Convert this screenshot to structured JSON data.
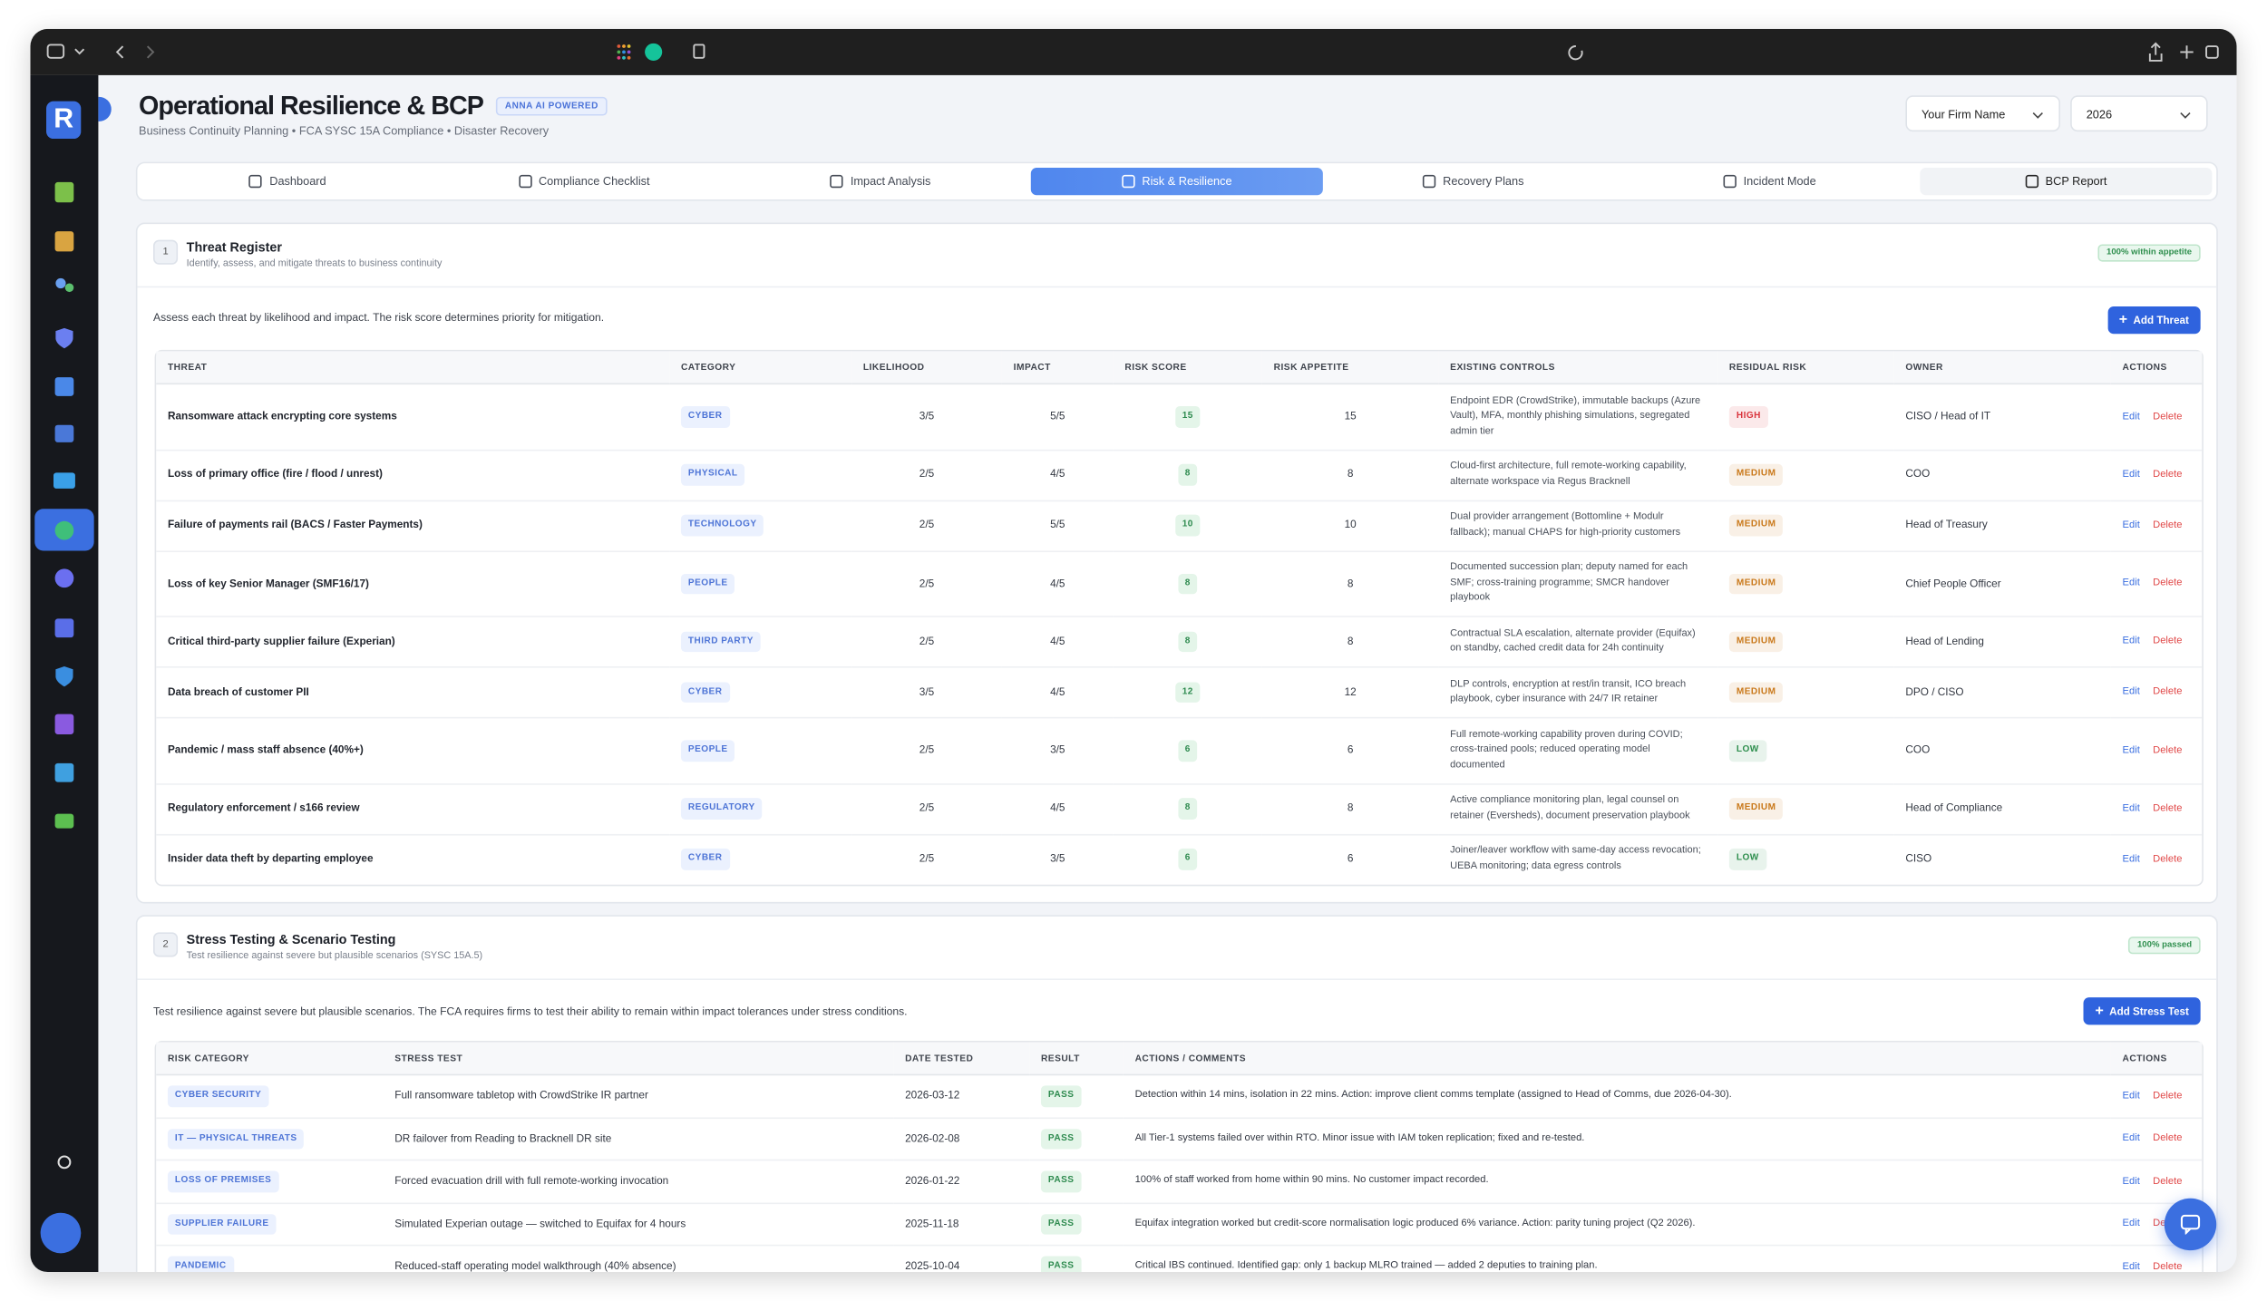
{
  "sidebar": {
    "logo": "R"
  },
  "header": {
    "title": "Operational Resilience & BCP",
    "badge": "ANNA AI POWERED",
    "subtitle": "Business Continuity Planning • FCA SYSC 15A Compliance • Disaster Recovery",
    "firm_select": "Your Firm Name",
    "year_select": "2026"
  },
  "tabs": [
    "Dashboard",
    "Compliance Checklist",
    "Impact Analysis",
    "Risk & Resilience",
    "Recovery Plans",
    "Incident Mode",
    "BCP Report"
  ],
  "active_tab": 3,
  "badge_colors": {
    "HIGH": "#d9363e",
    "MEDIUM": "#c9781a",
    "LOW": "#2f8f4e"
  },
  "threat_register": {
    "number": "1",
    "title": "Threat Register",
    "subtitle": "Identify, assess, and mitigate threats to business continuity",
    "status": "100% within appetite",
    "intro": "Assess each threat by likelihood and impact. The risk score determines priority for mitigation.",
    "button": "Add Threat",
    "columns": [
      "THREAT",
      "CATEGORY",
      "LIKELIHOOD",
      "IMPACT",
      "RISK SCORE",
      "RISK APPETITE",
      "EXISTING CONTROLS",
      "RESIDUAL RISK",
      "OWNER",
      "ACTIONS"
    ],
    "actions": [
      "Edit",
      "Delete"
    ],
    "rows": [
      {
        "threat": "Ransomware attack encrypting core systems",
        "category": "CYBER",
        "likelihood": "3/5",
        "impact": "5/5",
        "risk_score": "15",
        "risk_appetite": "15",
        "controls": "Endpoint EDR (CrowdStrike), immutable backups (Azure Vault), MFA, monthly phishing simulations, segregated admin tier",
        "residual_risk": "HIGH",
        "owner": "CISO / Head of IT"
      },
      {
        "threat": "Loss of primary office (fire / flood / unrest)",
        "category": "PHYSICAL",
        "likelihood": "2/5",
        "impact": "4/5",
        "risk_score": "8",
        "risk_appetite": "8",
        "controls": "Cloud-first architecture, full remote-working capability, alternate workspace via Regus Bracknell",
        "residual_risk": "MEDIUM",
        "owner": "COO"
      },
      {
        "threat": "Failure of payments rail (BACS / Faster Payments)",
        "category": "TECHNOLOGY",
        "likelihood": "2/5",
        "impact": "5/5",
        "risk_score": "10",
        "risk_appetite": "10",
        "controls": "Dual provider arrangement (Bottomline + Modulr fallback); manual CHAPS for high-priority customers",
        "residual_risk": "MEDIUM",
        "owner": "Head of Treasury"
      },
      {
        "threat": "Loss of key Senior Manager (SMF16/17)",
        "category": "PEOPLE",
        "likelihood": "2/5",
        "impact": "4/5",
        "risk_score": "8",
        "risk_appetite": "8",
        "controls": "Documented succession plan; deputy named for each SMF; cross-training programme; SMCR handover playbook",
        "residual_risk": "MEDIUM",
        "owner": "Chief People Officer"
      },
      {
        "threat": "Critical third-party supplier failure (Experian)",
        "category": "THIRD PARTY",
        "likelihood": "2/5",
        "impact": "4/5",
        "risk_score": "8",
        "risk_appetite": "8",
        "controls": "Contractual SLA escalation, alternate provider (Equifax) on standby, cached credit data for 24h continuity",
        "residual_risk": "MEDIUM",
        "owner": "Head of Lending"
      },
      {
        "threat": "Data breach of customer PII",
        "category": "CYBER",
        "likelihood": "3/5",
        "impact": "4/5",
        "risk_score": "12",
        "risk_appetite": "12",
        "controls": "DLP controls, encryption at rest/in transit, ICO breach playbook, cyber insurance with 24/7 IR retainer",
        "residual_risk": "MEDIUM",
        "owner": "DPO / CISO"
      },
      {
        "threat": "Pandemic / mass staff absence (40%+)",
        "category": "PEOPLE",
        "likelihood": "2/5",
        "impact": "3/5",
        "risk_score": "6",
        "risk_appetite": "6",
        "controls": "Full remote-working capability proven during COVID; cross-trained pools; reduced operating model documented",
        "residual_risk": "LOW",
        "owner": "COO"
      },
      {
        "threat": "Regulatory enforcement / s166 review",
        "category": "REGULATORY",
        "likelihood": "2/5",
        "impact": "4/5",
        "risk_score": "8",
        "risk_appetite": "8",
        "controls": "Active compliance monitoring plan, legal counsel on retainer (Eversheds), document preservation playbook",
        "residual_risk": "MEDIUM",
        "owner": "Head of Compliance"
      },
      {
        "threat": "Insider data theft by departing employee",
        "category": "CYBER",
        "likelihood": "2/5",
        "impact": "3/5",
        "risk_score": "6",
        "risk_appetite": "6",
        "controls": "Joiner/leaver workflow with same-day access revocation; UEBA monitoring; data egress controls",
        "residual_risk": "LOW",
        "owner": "CISO"
      }
    ]
  },
  "stress_testing": {
    "number": "2",
    "title": "Stress Testing & Scenario Testing",
    "subtitle": "Test resilience against severe but plausible scenarios (SYSC 15A.5)",
    "status": "100% passed",
    "intro": "Test resilience against severe but plausible scenarios. The FCA requires firms to test their ability to remain within impact tolerances under stress conditions.",
    "button": "Add Stress Test",
    "columns": [
      "RISK CATEGORY",
      "STRESS TEST",
      "DATE TESTED",
      "RESULT",
      "ACTIONS / COMMENTS",
      "ACTIONS"
    ],
    "actions": [
      "Edit",
      "Delete"
    ],
    "rows": [
      {
        "risk_category": "CYBER SECURITY",
        "stress_test": "Full ransomware tabletop with CrowdStrike IR partner",
        "date_tested": "2026-03-12",
        "result": "PASS",
        "comments": "Detection within 14 mins, isolation in 22 mins. Action: improve client comms template (assigned to Head of Comms, due 2026-04-30)."
      },
      {
        "risk_category": "IT — PHYSICAL THREATS",
        "stress_test": "DR failover from Reading to Bracknell DR site",
        "date_tested": "2026-02-08",
        "result": "PASS",
        "comments": "All Tier-1 systems failed over within RTO. Minor issue with IAM token replication; fixed and re-tested."
      },
      {
        "risk_category": "LOSS OF PREMISES",
        "stress_test": "Forced evacuation drill with full remote-working invocation",
        "date_tested": "2026-01-22",
        "result": "PASS",
        "comments": "100% of staff worked from home within 90 mins. No customer impact recorded."
      },
      {
        "risk_category": "SUPPLIER FAILURE",
        "stress_test": "Simulated Experian outage — switched to Equifax for 4 hours",
        "date_tested": "2025-11-18",
        "result": "PASS",
        "comments": "Equifax integration worked but credit-score normalisation logic produced 6% variance. Action: parity tuning project (Q2 2026)."
      },
      {
        "risk_category": "PANDEMIC",
        "stress_test": "Reduced-staff operating model walkthrough (40% absence)",
        "date_tested": "2025-10-04",
        "result": "PASS",
        "comments": "Critical IBS continued. Identified gap: only 1 backup MLRO trained — added 2 deputies to training plan."
      }
    ]
  }
}
